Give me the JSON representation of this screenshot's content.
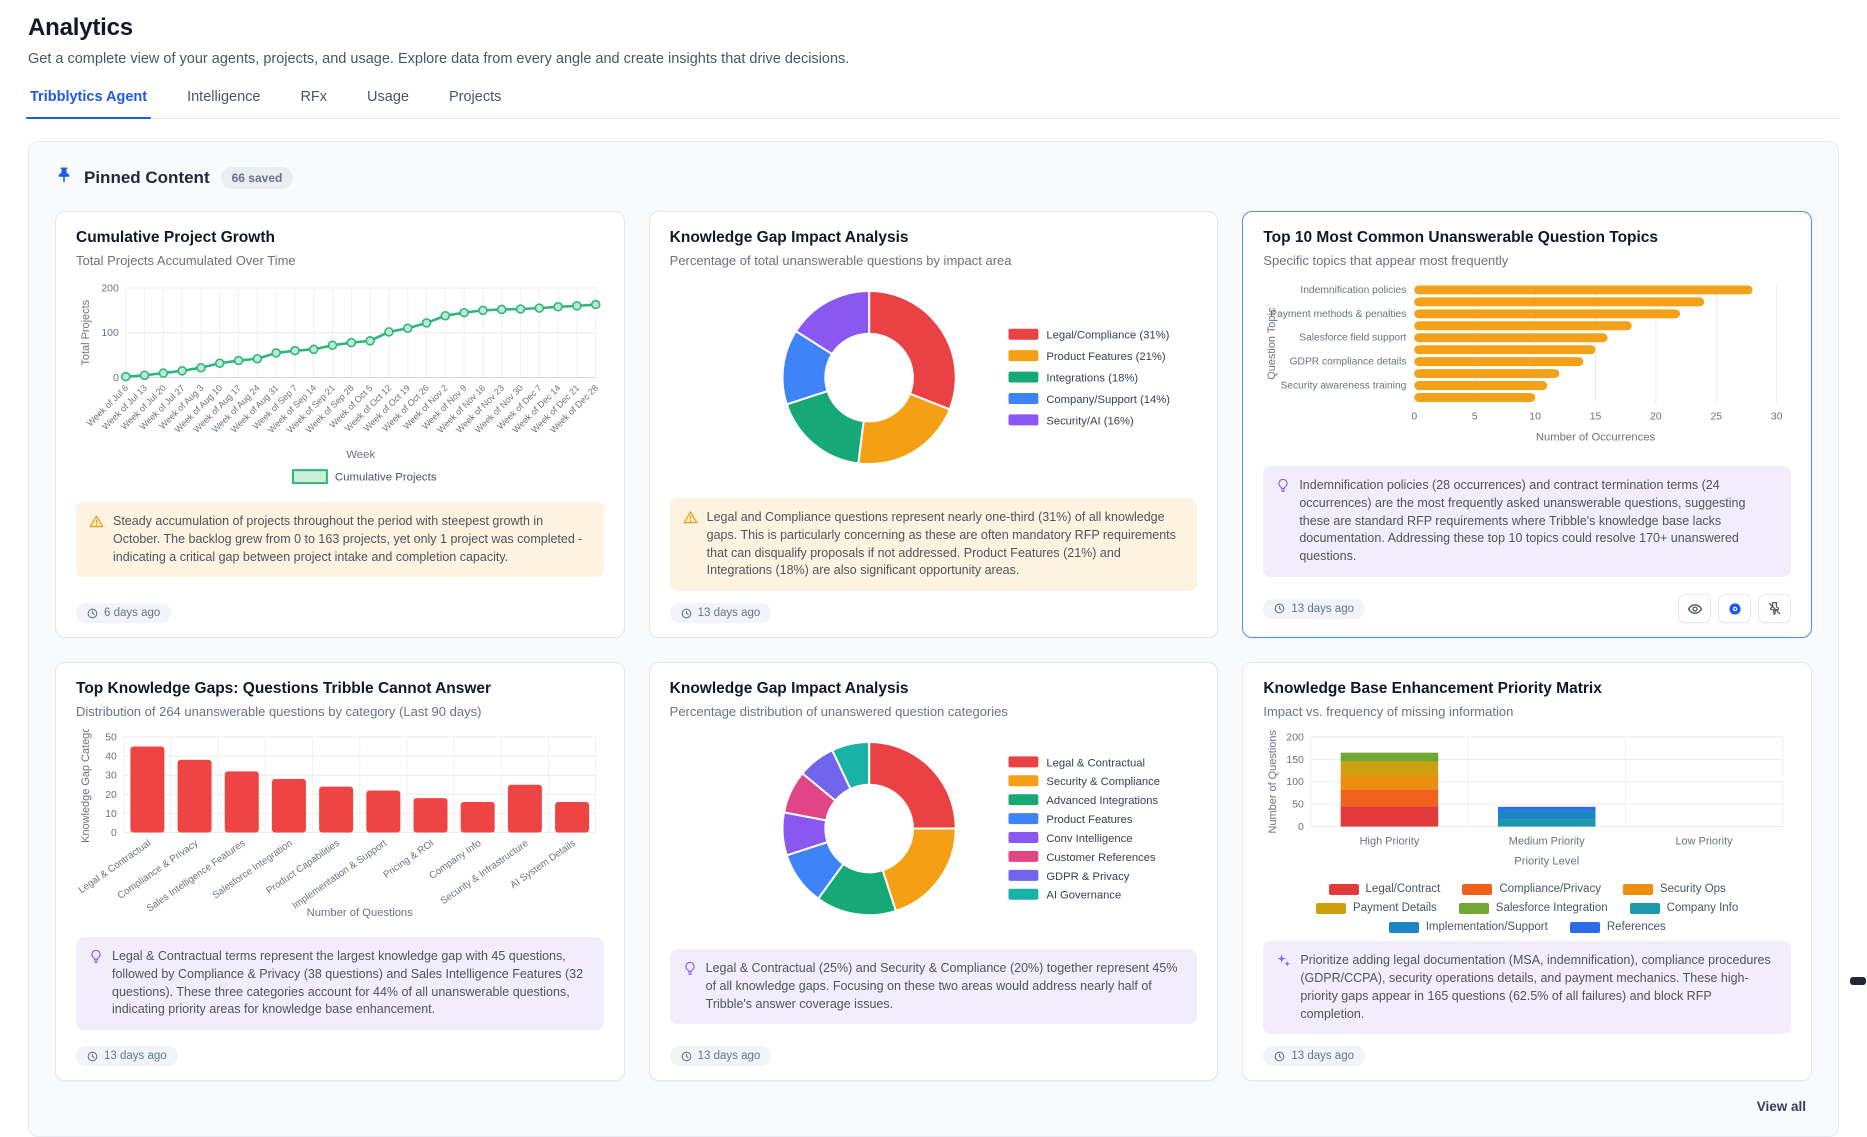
{
  "header": {
    "title": "Analytics",
    "subtitle": "Get a complete view of your agents, projects, and usage. Explore data from every angle and create insights that drive decisions."
  },
  "tabs": [
    {
      "label": "Tribblytics Agent",
      "active": true
    },
    {
      "label": "Intelligence",
      "active": false
    },
    {
      "label": "RFx",
      "active": false
    },
    {
      "label": "Usage",
      "active": false
    },
    {
      "label": "Projects",
      "active": false
    }
  ],
  "pinned": {
    "title": "Pinned Content",
    "badge": "66 saved",
    "view_all": "View all"
  },
  "icons": {
    "section": "pushpin-icon",
    "timestamp": "clock-icon",
    "warning": "warning-triangle-icon",
    "insight": "lightbulb-icon",
    "ai": "sparkles-icon",
    "card_actions": [
      "eye-icon",
      "ai-eye-icon",
      "unpin-icon"
    ]
  },
  "colors": {
    "accent_blue": "#2158e8",
    "highlight_border": "#4f8df9",
    "warning_bg": "#fcf3e1",
    "insight_bg": "#f1edfb",
    "warning_icon": "#f59e0b",
    "insight_icon": "#8b5cf6"
  },
  "cards": [
    {
      "title": "Cumulative Project Growth",
      "subtitle": "Total Projects Accumulated Over Time",
      "callout": {
        "type": "warning",
        "text": "Steady accumulation of projects throughout the period with steepest growth in October. The backlog grew from 0 to 163 projects, yet only 1 project was completed - indicating a critical gap between project intake and completion capacity."
      },
      "timestamp": "6 days ago",
      "highlighted": false
    },
    {
      "title": "Knowledge Gap Impact Analysis",
      "subtitle": "Percentage of total unanswerable questions by impact area",
      "callout": {
        "type": "warning",
        "text": "Legal and Compliance questions represent nearly one-third (31%) of all knowledge gaps. This is particularly concerning as these are often mandatory RFP requirements that can disqualify proposals if not addressed. Product Features (21%) and Integrations (18%) are also significant opportunity areas."
      },
      "timestamp": "13 days ago",
      "highlighted": false
    },
    {
      "title": "Top 10 Most Common Unanswerable Question Topics",
      "subtitle": "Specific topics that appear most frequently",
      "callout": {
        "type": "insight",
        "text": "Indemnification policies (28 occurrences) and contract termination terms (24 occurrences) are the most frequently asked unanswerable questions, suggesting these are standard RFP requirements where Tribble's knowledge base lacks documentation. Addressing these top 10 topics could resolve 170+ unanswered questions."
      },
      "timestamp": "13 days ago",
      "highlighted": true,
      "actions": [
        "eye-icon",
        "ai-eye-icon",
        "unpin-icon"
      ]
    },
    {
      "title": "Top Knowledge Gaps: Questions Tribble Cannot Answer",
      "subtitle": "Distribution of 264 unanswerable questions by category (Last 90 days)",
      "callout": {
        "type": "insight",
        "text": "Legal & Contractual terms represent the largest knowledge gap with 45 questions, followed by Compliance & Privacy (38 questions) and Sales Intelligence Features (32 questions). These three categories account for 44% of all unanswerable questions, indicating priority areas for knowledge base enhancement."
      },
      "timestamp": "13 days ago",
      "highlighted": false
    },
    {
      "title": "Knowledge Gap Impact Analysis",
      "subtitle": "Percentage distribution of unanswered question categories",
      "callout": {
        "type": "insight",
        "text": "Legal & Contractual (25%) and Security & Compliance (20%) together represent 45% of all knowledge gaps. Focusing on these two areas would address nearly half of Tribble's answer coverage issues."
      },
      "timestamp": "13 days ago",
      "highlighted": false
    },
    {
      "title": "Knowledge Base Enhancement Priority Matrix",
      "subtitle": "Impact vs. frequency of missing information",
      "callout": {
        "type": "ai",
        "text": "Prioritize adding legal documentation (MSA, indemnification), compliance procedures (GDPR/CCPA), security operations details, and payment mechanics. These high-priority gaps appear in 165 questions (62.5% of all failures) and block RFP completion."
      },
      "timestamp": "13 days ago",
      "highlighted": false
    }
  ],
  "chart_data": [
    {
      "type": "line",
      "title": "Cumulative Project Growth",
      "x": [
        "Week of Jul 6",
        "Week of Jul 13",
        "Week of Jul 20",
        "Week of Jul 27",
        "Week of Aug 3",
        "Week of Aug 10",
        "Week of Aug 17",
        "Week of Aug 24",
        "Week of Aug 31",
        "Week of Sep 7",
        "Week of Sep 14",
        "Week of Sep 21",
        "Week of Sep 28",
        "Week of Oct 5",
        "Week of Oct 12",
        "Week of Oct 19",
        "Week of Oct 26",
        "Week of Nov 2",
        "Week of Nov 9",
        "Week of Nov 16",
        "Week of Nov 23",
        "Week of Nov 30",
        "Week of Dec 7",
        "Week of Dec 14",
        "Week of Dec 21",
        "Week of Dec 28"
      ],
      "values": [
        2,
        5,
        10,
        15,
        22,
        32,
        38,
        42,
        55,
        60,
        63,
        72,
        78,
        82,
        102,
        110,
        122,
        138,
        145,
        150,
        152,
        153,
        155,
        158,
        160,
        163
      ],
      "xlabel": "Week",
      "ylabel": "Total Projects",
      "ylim": [
        0,
        200
      ],
      "y_ticks": [
        0,
        100,
        200
      ],
      "legend": [
        "Cumulative Projects"
      ],
      "legend_position": "bottom",
      "grid": true,
      "color": "#2eb77d"
    },
    {
      "type": "donut",
      "title": "Knowledge Gap Impact Analysis",
      "legend_position": "right",
      "segments": [
        {
          "label": "Legal/Compliance (31%)",
          "value": 31,
          "color": "#ea4144"
        },
        {
          "label": "Product Features (21%)",
          "value": 21,
          "color": "#f5a014"
        },
        {
          "label": "Integrations (18%)",
          "value": 18,
          "color": "#17a878"
        },
        {
          "label": "Company/Support (14%)",
          "value": 14,
          "color": "#3f83f8"
        },
        {
          "label": "Security/AI (16%)",
          "value": 16,
          "color": "#8a58f0"
        }
      ]
    },
    {
      "type": "hbar",
      "title": "Top 10 Most Common Unanswerable Question Topics",
      "labels": [
        "Indemnification policies",
        "",
        "Payment methods & penalties",
        "",
        "Salesforce field support",
        "",
        "GDPR compliance details",
        "",
        "Security awareness training",
        ""
      ],
      "values": [
        28,
        24,
        22,
        18,
        16,
        15,
        14,
        12,
        11,
        10
      ],
      "xlabel": "Number of Occurrences",
      "ylabel": "Question Topic",
      "xlim": [
        0,
        30
      ],
      "x_ticks": [
        0,
        5,
        10,
        15,
        20,
        25,
        30
      ],
      "grid": true,
      "color": "#f3a118"
    },
    {
      "type": "bar",
      "title": "Top Knowledge Gaps: Questions Tribble Cannot Answer",
      "categories": [
        "Legal & Contractual",
        "Compliance & Privacy",
        "Sales Intelligence Features",
        "Salesforce Integration",
        "Product Capabilities",
        "Implementation & Support",
        "Pricing & ROI",
        "Company Info",
        "Security & Infrastructure",
        "AI System Details"
      ],
      "values": [
        45,
        38,
        32,
        28,
        24,
        22,
        18,
        16,
        25,
        16
      ],
      "xlabel": "Number of Questions",
      "ylabel": "Knowledge Gap Catego",
      "ylim": [
        0,
        50
      ],
      "y_ticks": [
        0,
        10,
        20,
        30,
        40,
        50
      ],
      "grid": true,
      "color": "#ee4444"
    },
    {
      "type": "donut",
      "title": "Knowledge Gap Impact Analysis",
      "legend_position": "right",
      "segments": [
        {
          "label": "Legal & Contractual",
          "value": 25,
          "color": "#ea4144"
        },
        {
          "label": "Security & Compliance",
          "value": 20,
          "color": "#f5a014"
        },
        {
          "label": "Advanced Integrations",
          "value": 15,
          "color": "#17a878"
        },
        {
          "label": "Product Features",
          "value": 10,
          "color": "#3f83f8"
        },
        {
          "label": "Conv Intelligence",
          "value": 8,
          "color": "#8a58f0"
        },
        {
          "label": "Customer References",
          "value": 8,
          "color": "#e24585"
        },
        {
          "label": "GDPR & Privacy",
          "value": 7,
          "color": "#7166eb"
        },
        {
          "label": "AI Governance",
          "value": 7,
          "color": "#19b2a6"
        }
      ]
    },
    {
      "type": "stacked_bar",
      "title": "Knowledge Base Enhancement Priority Matrix",
      "categories": [
        "High Priority",
        "Medium Priority",
        "Low Priority"
      ],
      "series": [
        {
          "name": "Legal/Contract",
          "color": "#e23a3a",
          "values": [
            45,
            0,
            0
          ]
        },
        {
          "name": "Compliance/Privacy",
          "color": "#f0611e",
          "values": [
            38,
            0,
            0
          ]
        },
        {
          "name": "Security Ops",
          "color": "#ec8f10",
          "values": [
            32,
            0,
            0
          ]
        },
        {
          "name": "Payment Details",
          "color": "#cfa00d",
          "values": [
            30,
            0,
            0
          ]
        },
        {
          "name": "Salesforce Integration",
          "color": "#72a733",
          "values": [
            20,
            0,
            0
          ]
        },
        {
          "name": "Company Info",
          "color": "#1b98ab",
          "values": [
            0,
            16,
            0
          ]
        },
        {
          "name": "Implementation/Support",
          "color": "#1b86c3",
          "values": [
            0,
            20,
            0
          ]
        },
        {
          "name": "References",
          "color": "#2d6ce8",
          "values": [
            0,
            8,
            0
          ]
        }
      ],
      "xlabel": "Priority Level",
      "ylabel": "Number of Questions",
      "ylim": [
        0,
        200
      ],
      "y_ticks": [
        0,
        50,
        100,
        150,
        200
      ],
      "legend_position": "bottom",
      "grid": true
    }
  ]
}
